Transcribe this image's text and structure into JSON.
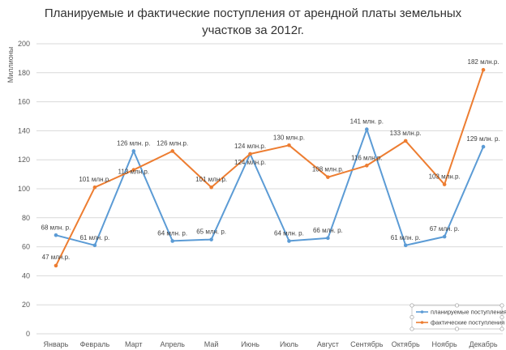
{
  "chart_data": {
    "type": "line",
    "title_lines": [
      "Планируемые и фактические поступления от арендной платы земельных",
      "участков за 2012г."
    ],
    "ylabel": "Миллионы",
    "xlabel": "",
    "ylim": [
      0,
      200
    ],
    "yticks": [
      "0",
      "20",
      "40",
      "60",
      "80",
      "100",
      "120",
      "140",
      "160",
      "180",
      "200"
    ],
    "grid": true,
    "legend_position": "bottom-right",
    "categories": [
      "Январь",
      "Февраль",
      "Март",
      "Апрель",
      "Май",
      "Июнь",
      "Июль",
      "Август",
      "Сентябрь",
      "Октябрь",
      "Ноябрь",
      "Декабрь"
    ],
    "series": [
      {
        "name": "планируемые поступления",
        "color": "#5b9bd5",
        "values": [
          68,
          61,
          126,
          64,
          65,
          124,
          64,
          66,
          141,
          61,
          67,
          129
        ],
        "labels": [
          "68 млн. р.",
          "61 млн. р.",
          "126 млн. р.",
          "64 млн. р.",
          "65 млн. р.",
          "124 млн.р.",
          "64 млн. р.",
          "66 млн. р.",
          "141 млн. р.",
          "61 млн. р.",
          "67 млн. р.",
          "129 млн. р."
        ]
      },
      {
        "name": "фактические поступления",
        "color": "#ed7d31",
        "values": [
          47,
          101,
          113,
          126,
          101,
          124,
          130,
          108,
          116,
          133,
          103,
          182
        ],
        "labels": [
          "47 млн.р.",
          "101 млн.р.",
          "113 млн.р.",
          "126 млн.р.",
          "101 млн.р.",
          "124 млн.р.",
          "130 млн.р.",
          "108 млн.р.",
          "116 млн.р.",
          "133 млн.р.",
          "103 млн.р.",
          "182 млн.р."
        ]
      }
    ]
  }
}
